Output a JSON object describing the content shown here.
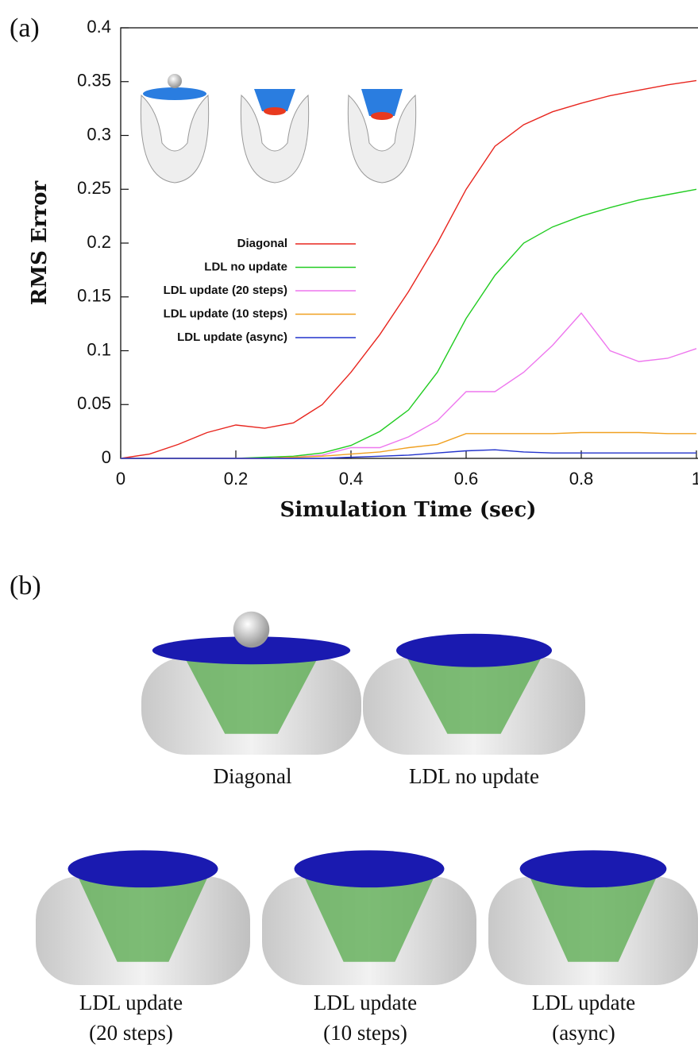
{
  "panels": [
    "(a)",
    "(b)"
  ],
  "chart_data": {
    "type": "line",
    "ylabel": "RMS Error",
    "xlabel": "Simulation Time (sec)",
    "xlim": [
      0,
      1
    ],
    "xticks": [
      0,
      0.2,
      0.4,
      0.6,
      0.8,
      1
    ],
    "ylim": [
      0,
      0.4
    ],
    "yticks": [
      0,
      0.05,
      0.1,
      0.15,
      0.2,
      0.25,
      0.3,
      0.35,
      0.4
    ],
    "x": [
      0,
      0.05,
      0.1,
      0.15,
      0.2,
      0.25,
      0.3,
      0.35,
      0.4,
      0.45,
      0.5,
      0.55,
      0.6,
      0.65,
      0.7,
      0.75,
      0.8,
      0.85,
      0.9,
      0.95,
      1
    ],
    "series": [
      {
        "name": "Diagonal",
        "color": "#e8261f",
        "values": [
          0,
          0.004,
          0.013,
          0.024,
          0.031,
          0.028,
          0.033,
          0.05,
          0.08,
          0.115,
          0.155,
          0.2,
          0.25,
          0.29,
          0.31,
          0.322,
          0.33,
          0.337,
          0.342,
          0.347,
          0.351
        ]
      },
      {
        "name": "LDL no update",
        "color": "#22cc22",
        "values": [
          0,
          0,
          0,
          0,
          0,
          0.001,
          0.002,
          0.005,
          0.012,
          0.025,
          0.045,
          0.08,
          0.13,
          0.17,
          0.2,
          0.215,
          0.225,
          0.233,
          0.24,
          0.245,
          0.25
        ]
      },
      {
        "name": "LDL update (20 steps)",
        "color": "#ee77ee",
        "values": [
          0,
          0,
          0,
          0,
          0,
          0,
          0.001,
          0.003,
          0.01,
          0.01,
          0.02,
          0.035,
          0.062,
          0.062,
          0.08,
          0.105,
          0.135,
          0.1,
          0.09,
          0.093,
          0.102
        ]
      },
      {
        "name": "LDL update (10 steps)",
        "color": "#f0a020",
        "values": [
          0,
          0,
          0,
          0,
          0,
          0,
          0.001,
          0.002,
          0.004,
          0.006,
          0.01,
          0.013,
          0.023,
          0.023,
          0.023,
          0.023,
          0.024,
          0.024,
          0.024,
          0.023,
          0.023
        ]
      },
      {
        "name": "LDL update (async)",
        "color": "#2233cc",
        "values": [
          0,
          0,
          0,
          0,
          0,
          0,
          0,
          0,
          0.001,
          0.002,
          0.003,
          0.005,
          0.007,
          0.008,
          0.006,
          0.005,
          0.005,
          0.005,
          0.005,
          0.005,
          0.005
        ]
      }
    ]
  },
  "captions": [
    [
      "Diagonal"
    ],
    [
      "LDL no update"
    ],
    [
      "LDL update",
      "(20 steps)"
    ],
    [
      "LDL update",
      "(10 steps)"
    ],
    [
      "LDL update",
      "(async)"
    ]
  ]
}
